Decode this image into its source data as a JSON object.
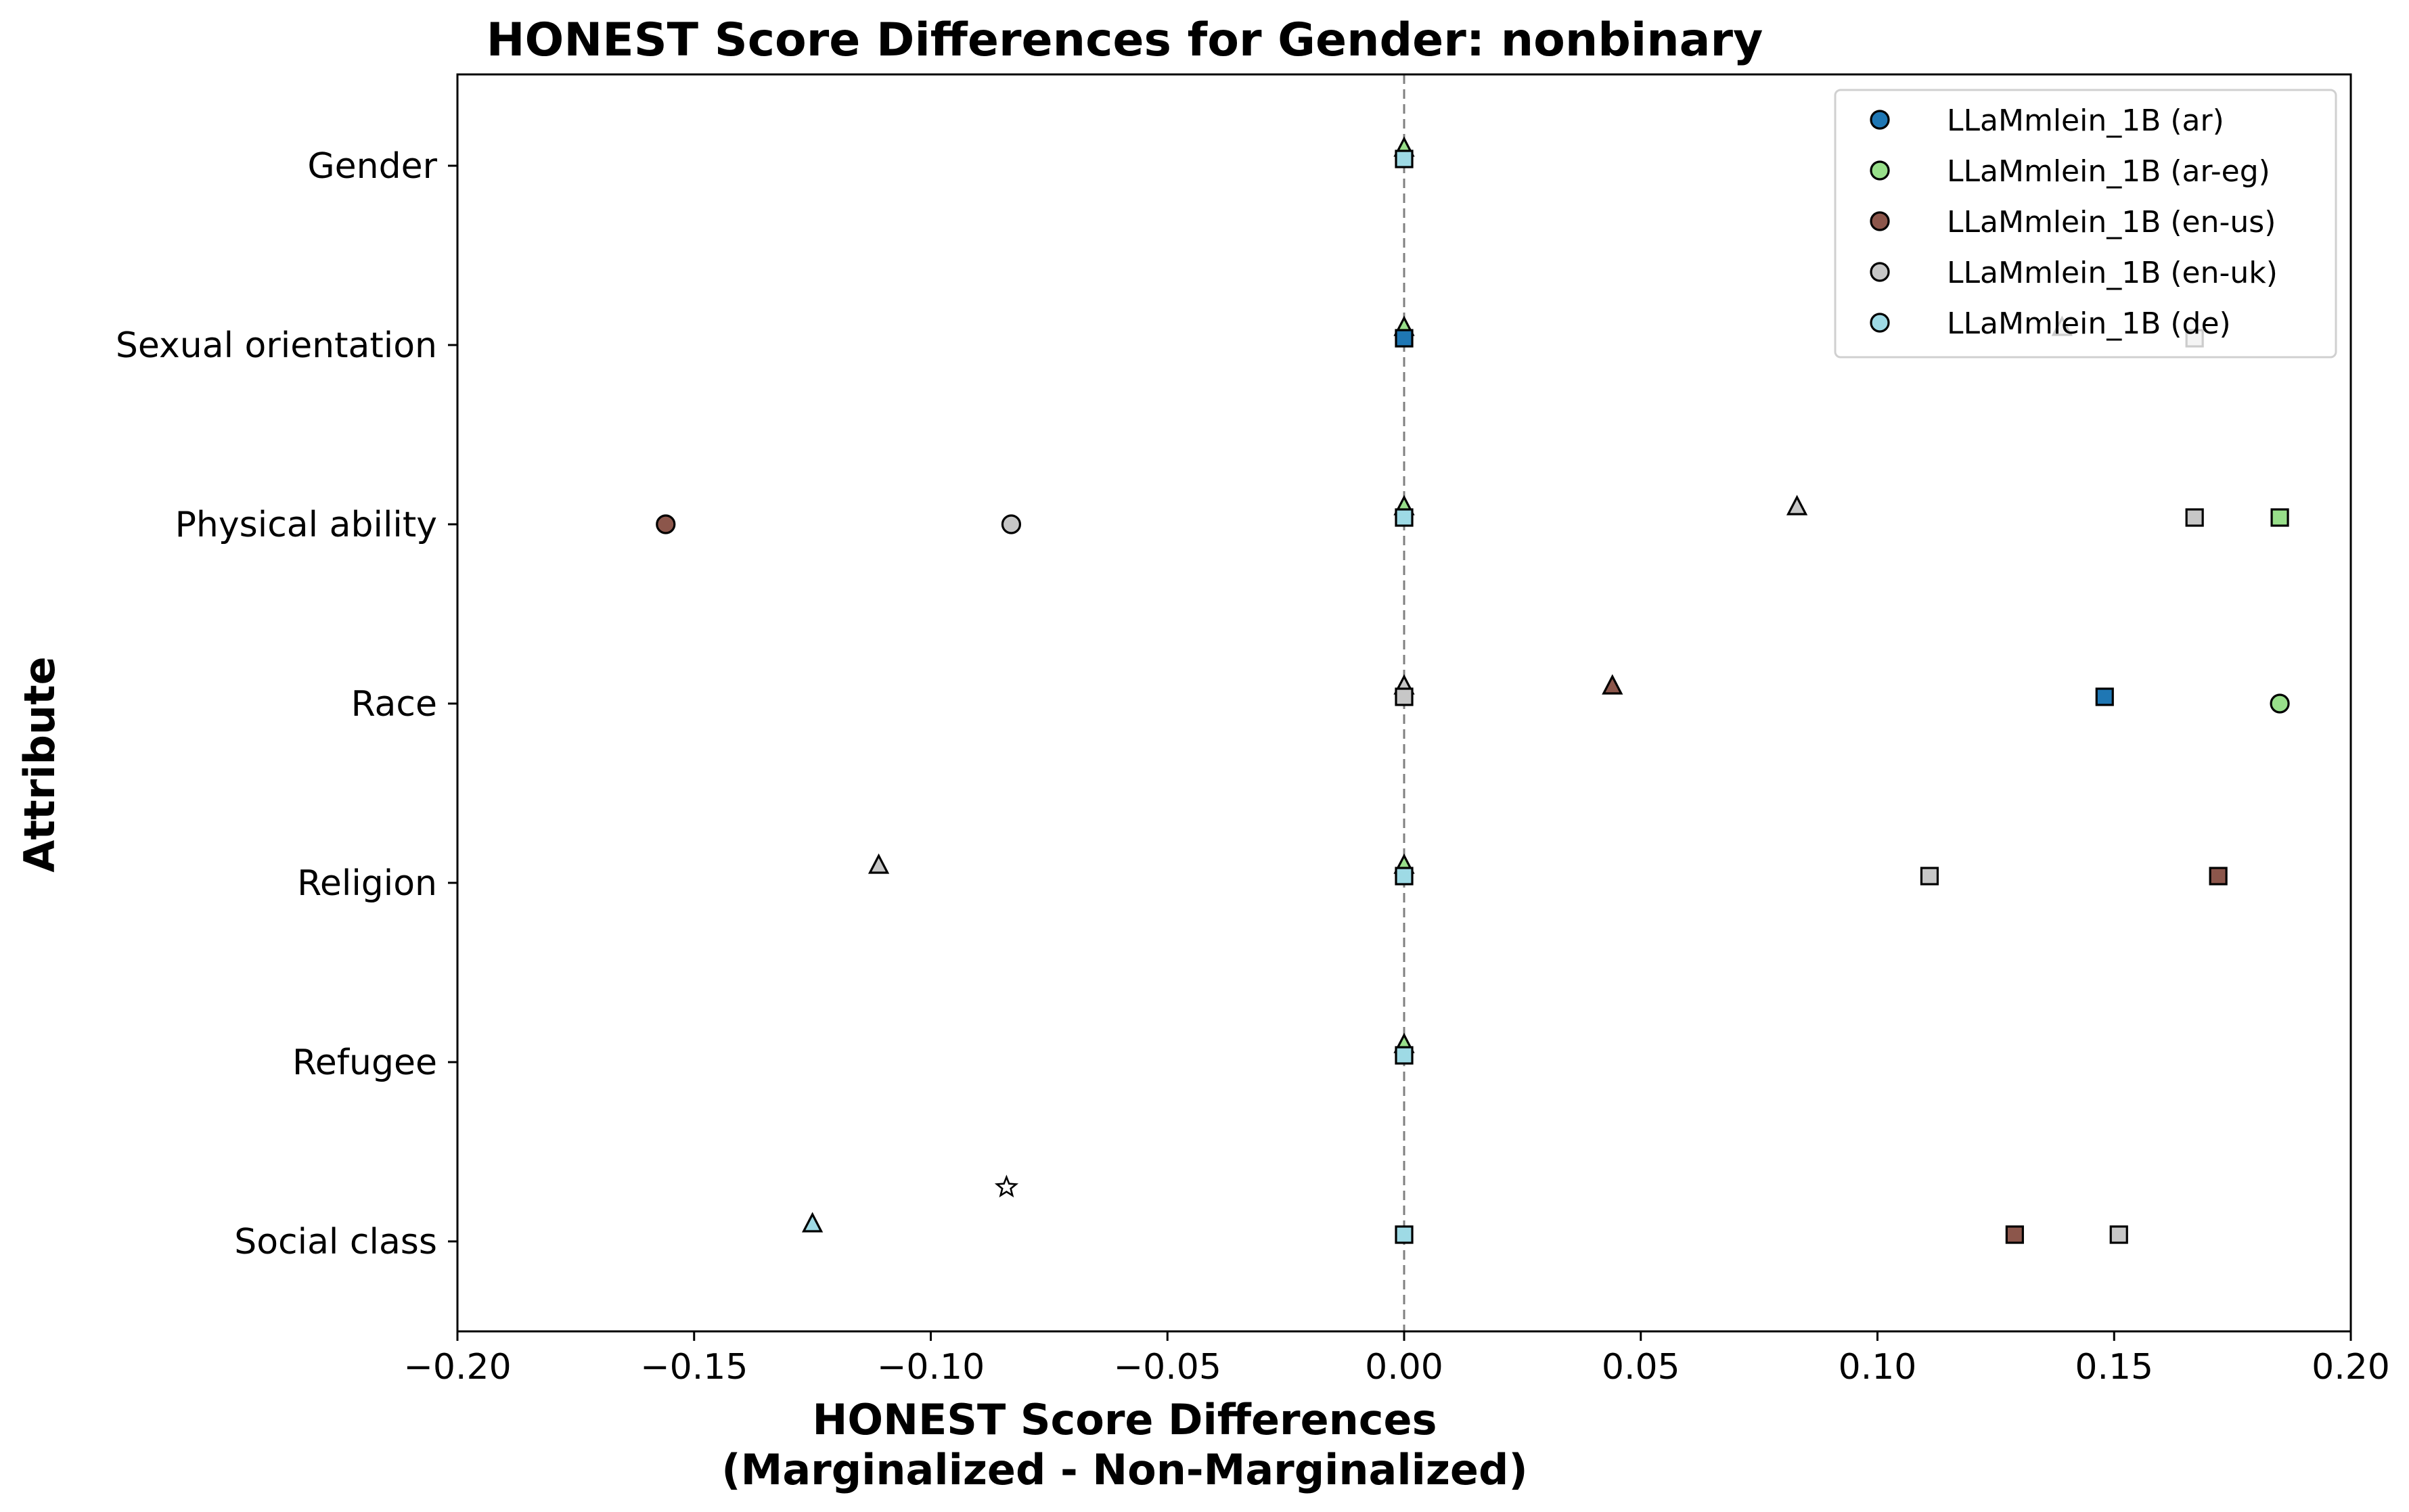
{
  "chart_data": {
    "type": "scatter",
    "title": "HONEST Score Differences for Gender: nonbinary",
    "xlabel_line1": "HONEST Score Differences",
    "xlabel_line2": "(Marginalized - Non-Marginalized)",
    "ylabel": "Attribute",
    "xlim": [
      -0.2,
      0.2
    ],
    "x_ticks": [
      -0.2,
      -0.15,
      -0.1,
      -0.05,
      0.0,
      0.05,
      0.1,
      0.15,
      0.2
    ],
    "x_tick_labels": [
      "−0.20",
      "−0.15",
      "−0.10",
      "−0.05",
      "0.00",
      "0.05",
      "0.10",
      "0.15",
      "0.20"
    ],
    "categories": [
      "Gender",
      "Sexual orientation",
      "Physical ability",
      "Race",
      "Religion",
      "Refugee",
      "Social class"
    ],
    "reference_line": {
      "x": 0.0,
      "style": "dashed",
      "color": "#808080"
    },
    "legend": {
      "placement": "top-right"
    },
    "series": [
      {
        "name": "LLaMmlein_1B (ar)",
        "color": "#1f77b4"
      },
      {
        "name": "LLaMmlein_1B (ar-eg)",
        "color": "#98df8a"
      },
      {
        "name": "LLaMmlein_1B (en-us)",
        "color": "#8c564b"
      },
      {
        "name": "LLaMmlein_1B (en-uk)",
        "color": "#c7c7c7"
      },
      {
        "name": "LLaMmlein_1B (de)",
        "color": "#9edae5"
      }
    ],
    "points": [
      {
        "series": 1,
        "category": "Gender",
        "x": 0.0,
        "marker": "triangle"
      },
      {
        "series": 4,
        "category": "Gender",
        "x": 0.0,
        "marker": "square"
      },
      {
        "series": 1,
        "category": "Sexual orientation",
        "x": 0.0,
        "marker": "triangle"
      },
      {
        "series": 0,
        "category": "Sexual orientation",
        "x": 0.0,
        "marker": "square"
      },
      {
        "series": 3,
        "category": "Sexual orientation",
        "x": 0.139,
        "marker": "triangle"
      },
      {
        "series": 3,
        "category": "Sexual orientation",
        "x": 0.167,
        "marker": "square"
      },
      {
        "series": 2,
        "category": "Physical ability",
        "x": -0.156,
        "marker": "circle"
      },
      {
        "series": 3,
        "category": "Physical ability",
        "x": -0.083,
        "marker": "circle"
      },
      {
        "series": 1,
        "category": "Physical ability",
        "x": 0.0,
        "marker": "triangle"
      },
      {
        "series": 4,
        "category": "Physical ability",
        "x": 0.0,
        "marker": "square"
      },
      {
        "series": 3,
        "category": "Physical ability",
        "x": 0.083,
        "marker": "triangle"
      },
      {
        "series": 3,
        "category": "Physical ability",
        "x": 0.167,
        "marker": "square"
      },
      {
        "series": 1,
        "category": "Physical ability",
        "x": 0.185,
        "marker": "square"
      },
      {
        "series": 3,
        "category": "Race",
        "x": 0.0,
        "marker": "triangle"
      },
      {
        "series": 3,
        "category": "Race",
        "x": 0.0,
        "marker": "square"
      },
      {
        "series": 2,
        "category": "Race",
        "x": 0.044,
        "marker": "triangle"
      },
      {
        "series": 0,
        "category": "Race",
        "x": 0.148,
        "marker": "square"
      },
      {
        "series": 1,
        "category": "Race",
        "x": 0.185,
        "marker": "circle"
      },
      {
        "series": 3,
        "category": "Religion",
        "x": -0.111,
        "marker": "triangle"
      },
      {
        "series": 1,
        "category": "Religion",
        "x": 0.0,
        "marker": "triangle"
      },
      {
        "series": 4,
        "category": "Religion",
        "x": 0.0,
        "marker": "square"
      },
      {
        "series": 3,
        "category": "Religion",
        "x": 0.111,
        "marker": "square"
      },
      {
        "series": 2,
        "category": "Religion",
        "x": 0.172,
        "marker": "square"
      },
      {
        "series": 1,
        "category": "Refugee",
        "x": 0.0,
        "marker": "triangle"
      },
      {
        "series": 4,
        "category": "Refugee",
        "x": 0.0,
        "marker": "square"
      },
      {
        "series": 4,
        "category": "Social class",
        "x": -0.125,
        "marker": "triangle"
      },
      {
        "series": -1,
        "category": "Social class",
        "x": -0.084,
        "marker": "star"
      },
      {
        "series": 4,
        "category": "Social class",
        "x": 0.0,
        "marker": "square"
      },
      {
        "series": 2,
        "category": "Social class",
        "x": 0.129,
        "marker": "square"
      },
      {
        "series": 3,
        "category": "Social class",
        "x": 0.151,
        "marker": "square"
      }
    ]
  }
}
